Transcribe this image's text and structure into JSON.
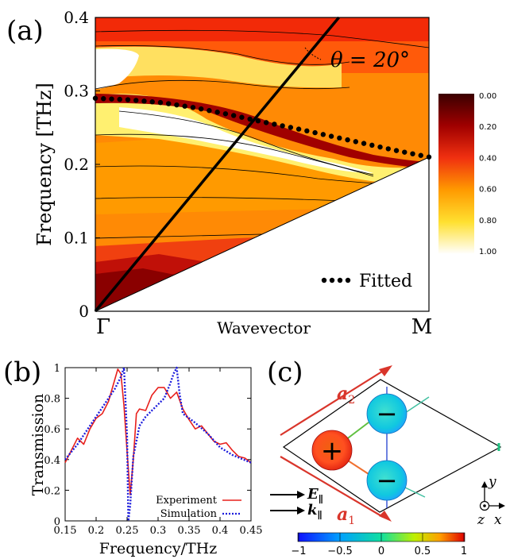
{
  "panels": {
    "a": {
      "label": "(a)",
      "annotation": "θ = 20°",
      "ylabel": "Frequency [THz]",
      "xlabel": "Wavevector",
      "x_start_label": "Γ",
      "x_end_label": "M",
      "y_ticks": [
        "0",
        "0.1",
        "0.2",
        "0.3",
        "0.4"
      ],
      "legend_label": "Fitted",
      "colorbar_ticks": [
        "0.00",
        "0.20",
        "0.40",
        "0.60",
        "0.80",
        "1.00"
      ]
    },
    "b": {
      "label": "(b)"
    },
    "c": {
      "label": "(c)",
      "a1": "a",
      "a1_sub": "1",
      "a2": "a",
      "a2_sub": "2",
      "E": "E",
      "k": "k",
      "par": "∥",
      "plus": "+",
      "minus": "−",
      "axis_y": "y",
      "axis_z": "z",
      "axis_x": "x",
      "colorbar_ticks": [
        "−1",
        "−0.5",
        "0",
        "0.5",
        "1"
      ]
    }
  },
  "colors": {
    "experiment": "#e8201c",
    "simulation": "#1c1cdc",
    "arrow_red": "#d9352b"
  },
  "chart_data": [
    {
      "type": "heatmap",
      "title": "",
      "xlabel": "Wavevector",
      "ylabel": "Frequency [THz]",
      "ylim": [
        0,
        0.4
      ],
      "x_categories": [
        "Γ",
        "M"
      ],
      "colorbar_range": [
        0,
        1
      ],
      "series": [
        {
          "name": "Fitted",
          "x": [
            0,
            0.1,
            0.2,
            0.3,
            0.4,
            0.5,
            0.6,
            0.7,
            0.8,
            0.9,
            1.0
          ],
          "y": [
            0.29,
            0.288,
            0.284,
            0.277,
            0.268,
            0.258,
            0.249,
            0.239,
            0.229,
            0.219,
            0.21
          ]
        },
        {
          "name": "",
          "x": [
            0,
            0.73
          ],
          "y": [
            0,
            0.4
          ]
        }
      ]
    },
    {
      "type": "line",
      "title": "",
      "xlabel": "Frequency/THz",
      "ylabel": "Transmission",
      "xlim": [
        0.15,
        0.45
      ],
      "ylim": [
        0,
        1
      ],
      "x_ticks": [
        "0.15",
        "0.2",
        "0.25",
        "0.3",
        "0.35",
        "0.4",
        "0.45"
      ],
      "y_ticks": [
        "0",
        "0.2",
        "0.4",
        "0.6",
        "0.8",
        "1"
      ],
      "series": [
        {
          "name": "Experiment",
          "x": [
            0.15,
            0.16,
            0.17,
            0.18,
            0.19,
            0.2,
            0.21,
            0.22,
            0.23,
            0.235,
            0.24,
            0.245,
            0.25,
            0.255,
            0.26,
            0.265,
            0.27,
            0.28,
            0.29,
            0.3,
            0.31,
            0.32,
            0.33,
            0.34,
            0.35,
            0.36,
            0.37,
            0.38,
            0.39,
            0.4,
            0.41,
            0.42,
            0.43,
            0.44,
            0.45
          ],
          "y": [
            0.38,
            0.46,
            0.54,
            0.5,
            0.6,
            0.67,
            0.7,
            0.78,
            0.92,
            0.99,
            0.96,
            0.75,
            0.45,
            0.17,
            0.4,
            0.7,
            0.73,
            0.72,
            0.82,
            0.87,
            0.87,
            0.8,
            0.84,
            0.73,
            0.66,
            0.6,
            0.62,
            0.57,
            0.52,
            0.5,
            0.51,
            0.46,
            0.42,
            0.41,
            0.38
          ]
        },
        {
          "name": "Simulation",
          "x": [
            0.15,
            0.17,
            0.19,
            0.21,
            0.23,
            0.24,
            0.245,
            0.25,
            0.252,
            0.255,
            0.26,
            0.27,
            0.28,
            0.29,
            0.3,
            0.31,
            0.32,
            0.325,
            0.33,
            0.335,
            0.34,
            0.36,
            0.38,
            0.4,
            0.42,
            0.45
          ],
          "y": [
            0.4,
            0.5,
            0.62,
            0.74,
            0.86,
            0.94,
            1.0,
            0.55,
            0.0,
            0.1,
            0.42,
            0.62,
            0.68,
            0.72,
            0.76,
            0.8,
            0.9,
            0.96,
            1.0,
            0.82,
            0.7,
            0.64,
            0.57,
            0.48,
            0.43,
            0.38
          ]
        }
      ]
    }
  ]
}
